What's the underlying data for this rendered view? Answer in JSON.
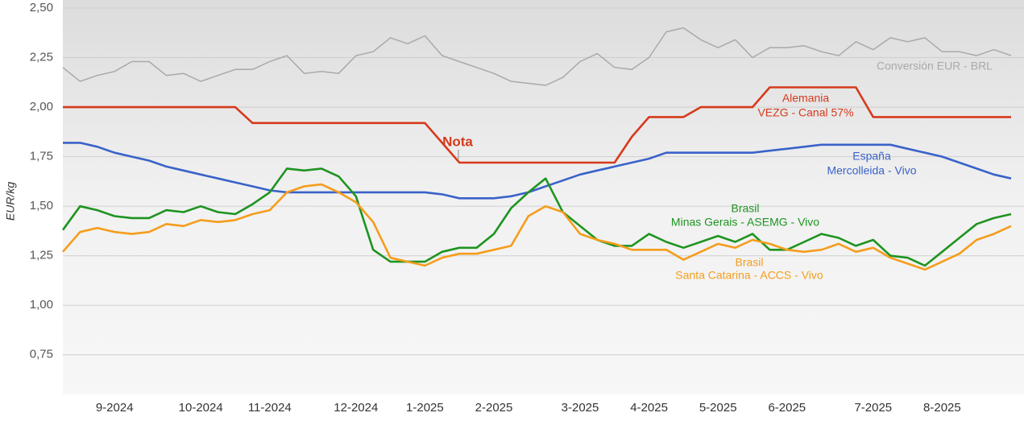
{
  "chart_data": {
    "type": "line",
    "y_label": "EUR/kg",
    "categories": [
      null,
      null,
      null,
      "9-2024",
      null,
      null,
      null,
      null,
      "10-2024",
      null,
      null,
      null,
      "11-2024",
      null,
      null,
      null,
      null,
      "12-2024",
      null,
      null,
      null,
      "1-2025",
      null,
      null,
      null,
      "2-2025",
      null,
      null,
      null,
      null,
      "3-2025",
      null,
      null,
      null,
      "4-2025",
      null,
      null,
      null,
      "5-2025",
      null,
      null,
      null,
      "6-2025",
      null,
      null,
      null,
      null,
      "7-2025",
      null,
      null,
      null,
      "8-2025",
      null,
      null,
      null,
      null
    ],
    "ylim": [
      0.55,
      2.5
    ],
    "yticks": [
      {
        "value": 0.75,
        "label": "0,75"
      },
      {
        "value": 1,
        "label": "1,00"
      },
      {
        "value": 1.25,
        "label": "1,25"
      },
      {
        "value": 1.5,
        "label": "1,50"
      },
      {
        "value": 1.75,
        "label": "1,75"
      },
      {
        "value": 2,
        "label": "2,00"
      },
      {
        "value": 2.25,
        "label": "2,25"
      },
      {
        "value": 2.5,
        "label": "2,50"
      }
    ],
    "grid": true,
    "annotations": [
      "Nota"
    ],
    "series": [
      {
        "name": "Conversión EUR - BRL",
        "color": "#a9a9a9",
        "values": [
          2.2,
          2.13,
          2.16,
          2.18,
          2.23,
          2.23,
          2.16,
          2.17,
          2.13,
          2.16,
          2.19,
          2.19,
          2.23,
          2.26,
          2.17,
          2.18,
          2.17,
          2.26,
          2.28,
          2.35,
          2.32,
          2.36,
          2.26,
          2.23,
          2.2,
          2.17,
          2.13,
          2.12,
          2.11,
          2.15,
          2.23,
          2.27,
          2.2,
          2.19,
          2.25,
          2.38,
          2.4,
          2.34,
          2.3,
          2.34,
          2.25,
          2.3,
          2.3,
          2.31,
          2.28,
          2.26,
          2.33,
          2.29,
          2.35,
          2.33,
          2.35,
          2.28,
          2.28,
          2.26,
          2.29,
          2.26
        ]
      },
      {
        "name": "Alemania",
        "subtitle": "VEZG - Canal 57%",
        "color": "#d63a1c",
        "values": [
          2.0,
          2.0,
          2.0,
          2.0,
          2.0,
          2.0,
          2.0,
          2.0,
          2.0,
          2.0,
          2.0,
          1.92,
          1.92,
          1.92,
          1.92,
          1.92,
          1.92,
          1.92,
          1.92,
          1.92,
          1.92,
          1.92,
          1.82,
          1.72,
          1.72,
          1.72,
          1.72,
          1.72,
          1.72,
          1.72,
          1.72,
          1.72,
          1.72,
          1.85,
          1.95,
          1.95,
          1.95,
          2.0,
          2.0,
          2.0,
          2.0,
          2.1,
          2.1,
          2.1,
          2.1,
          2.1,
          2.1,
          1.95,
          1.95,
          1.95,
          1.95,
          1.95,
          1.95,
          1.95,
          1.95,
          1.95
        ]
      },
      {
        "name": "España",
        "subtitle": "Mercolleida - Vivo",
        "color": "#3a62c9",
        "values": [
          1.82,
          1.82,
          1.8,
          1.77,
          1.75,
          1.73,
          1.7,
          1.68,
          1.66,
          1.64,
          1.62,
          1.6,
          1.58,
          1.57,
          1.57,
          1.57,
          1.57,
          1.57,
          1.57,
          1.57,
          1.57,
          1.57,
          1.56,
          1.54,
          1.54,
          1.54,
          1.55,
          1.57,
          1.6,
          1.63,
          1.66,
          1.68,
          1.7,
          1.72,
          1.74,
          1.77,
          1.77,
          1.77,
          1.77,
          1.77,
          1.77,
          1.78,
          1.79,
          1.8,
          1.81,
          1.81,
          1.81,
          1.81,
          1.81,
          1.79,
          1.77,
          1.75,
          1.72,
          1.69,
          1.66,
          1.64
        ]
      },
      {
        "name": "Brasil",
        "subtitle": "Minas Gerais - ASEMG - Vivo",
        "color": "#1e9420",
        "values": [
          1.38,
          1.5,
          1.48,
          1.45,
          1.44,
          1.44,
          1.48,
          1.47,
          1.5,
          1.47,
          1.46,
          1.51,
          1.57,
          1.69,
          1.68,
          1.69,
          1.65,
          1.55,
          1.28,
          1.22,
          1.22,
          1.22,
          1.27,
          1.29,
          1.29,
          1.36,
          1.49,
          1.57,
          1.64,
          1.47,
          1.4,
          1.33,
          1.3,
          1.3,
          1.36,
          1.32,
          1.29,
          1.32,
          1.35,
          1.32,
          1.36,
          1.28,
          1.28,
          1.32,
          1.36,
          1.34,
          1.3,
          1.33,
          1.25,
          1.24,
          1.2,
          1.27,
          1.34,
          1.41,
          1.44,
          1.46
        ]
      },
      {
        "name": "Brasil",
        "subtitle": "Santa Catarina - ACCS - Vivo",
        "color": "#f59d1c",
        "values": [
          1.27,
          1.37,
          1.39,
          1.37,
          1.36,
          1.37,
          1.41,
          1.4,
          1.43,
          1.42,
          1.43,
          1.46,
          1.48,
          1.57,
          1.6,
          1.61,
          1.57,
          1.52,
          1.42,
          1.24,
          1.22,
          1.2,
          1.24,
          1.26,
          1.26,
          1.28,
          1.3,
          1.45,
          1.5,
          1.47,
          1.36,
          1.33,
          1.31,
          1.28,
          1.28,
          1.28,
          1.23,
          1.27,
          1.31,
          1.29,
          1.33,
          1.31,
          1.28,
          1.27,
          1.28,
          1.31,
          1.27,
          1.29,
          1.24,
          1.21,
          1.18,
          1.22,
          1.26,
          1.33,
          1.36,
          1.4
        ]
      }
    ]
  }
}
